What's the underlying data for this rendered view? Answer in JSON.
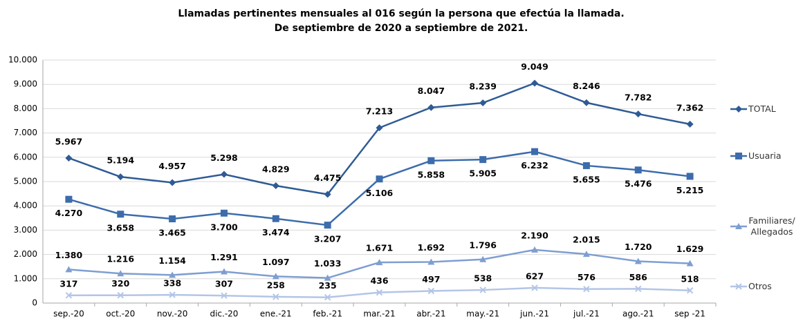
{
  "chart_data": {
    "type": "line",
    "title": "Llamadas pertinentes mensuales al 016 según la persona que efectúa la llamada.",
    "subtitle": "De septiembre de 2020 a septiembre de 2021.",
    "categories": [
      "sep.-20",
      "oct.-20",
      "nov.-20",
      "dic.-20",
      "ene.-21",
      "feb.-21",
      "mar.-21",
      "abr.-21",
      "may.-21",
      "jun.-21",
      "jul.-21",
      "ago.-21",
      "sep -21"
    ],
    "ylim": [
      0,
      10000
    ],
    "yticks": [
      0,
      {
        "value": 1000,
        "label": "1.000"
      },
      {
        "value": 2000,
        "label": "2.000"
      },
      {
        "value": 3000,
        "label": "3.000"
      },
      {
        "value": 4000,
        "label": "4.000"
      },
      {
        "value": 5000,
        "label": "5.000"
      },
      {
        "value": 6000,
        "label": "6.000"
      },
      {
        "value": 7000,
        "label": "7.000"
      },
      {
        "value": 8000,
        "label": "8.000"
      },
      {
        "value": 9000,
        "label": "9.000"
      },
      {
        "value": 10000,
        "label": "10.000"
      }
    ],
    "grid": true,
    "legend": "right",
    "series": [
      {
        "name": "TOTAL",
        "color": "#2e5b95",
        "marker": "diamond",
        "values": [
          5967,
          5194,
          4957,
          5298,
          4829,
          4475,
          7213,
          8047,
          8239,
          9049,
          8246,
          7782,
          7362
        ],
        "value_labels": [
          "5.967",
          "5.194",
          "4.957",
          "5.298",
          "4.829",
          "4.475",
          "7.213",
          "8.047",
          "8.239",
          "9.049",
          "8.246",
          "7.782",
          "7.362"
        ]
      },
      {
        "name": "Usuaria",
        "color": "#3c6cab",
        "marker": "square",
        "values": [
          4270,
          3658,
          3465,
          3700,
          3474,
          3207,
          5106,
          5858,
          5905,
          6232,
          5655,
          5476,
          5215
        ],
        "value_labels": [
          "4.270",
          "3.658",
          "3.465",
          "3.700",
          "3.474",
          "3.207",
          "5.106",
          "5.858",
          "5.905",
          "6.232",
          "5.655",
          "5.476",
          "5.215"
        ]
      },
      {
        "name": "Familiares/ Allegados",
        "color": "#7e9ed1",
        "marker": "triangle",
        "values": [
          1380,
          1216,
          1154,
          1291,
          1097,
          1033,
          1671,
          1692,
          1796,
          2190,
          2015,
          1720,
          1629
        ],
        "value_labels": [
          "1.380",
          "1.216",
          "1.154",
          "1.291",
          "1.097",
          "1.033",
          "1.671",
          "1.692",
          "1.796",
          "2.190",
          "2.015",
          "1.720",
          "1.629"
        ]
      },
      {
        "name": "Otros",
        "color": "#b3c5e6",
        "marker": "x",
        "values": [
          317,
          320,
          338,
          307,
          258,
          235,
          436,
          497,
          538,
          627,
          576,
          586,
          518
        ]
      }
    ]
  }
}
